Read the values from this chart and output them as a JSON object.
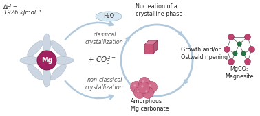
{
  "bg_color": "#ffffff",
  "fig_width": 3.78,
  "fig_height": 1.69,
  "dpi": 100,
  "dH_line1": "ΔH =",
  "dH_line2": "1926 kJmol⁻¹",
  "h2o_text": "H₂O",
  "co3_text": "+ CO³⁻²",
  "classical_text": "classical\ncrystallization",
  "nonclassical_text": "non-classical\ncrystallization",
  "nucleation_text": "Nucleation of a\ncrystalline phase",
  "growth_text": "Growth and/or\nOstwald ripening",
  "amorphous_text": "Amorphous\nMg carbonate",
  "magnesite_text": "MgCO₃\nMagnesite",
  "petal_color": "#ccd6e2",
  "petal_edge": "#a8b8c8",
  "mg_color": "#a02060",
  "mg_text_color": "#ffffff",
  "arrow_color": "#b0c8dc",
  "cube_color": "#cc5577",
  "sphere_color": "#d06888",
  "magnesite_pink": "#c04070",
  "magnesite_green": "#207840",
  "bond_color": "#555555",
  "label_fontsize": 5.8,
  "italic_fontsize": 5.8,
  "dH_fontsize": 6.0,
  "mg_fontsize": 7.0
}
